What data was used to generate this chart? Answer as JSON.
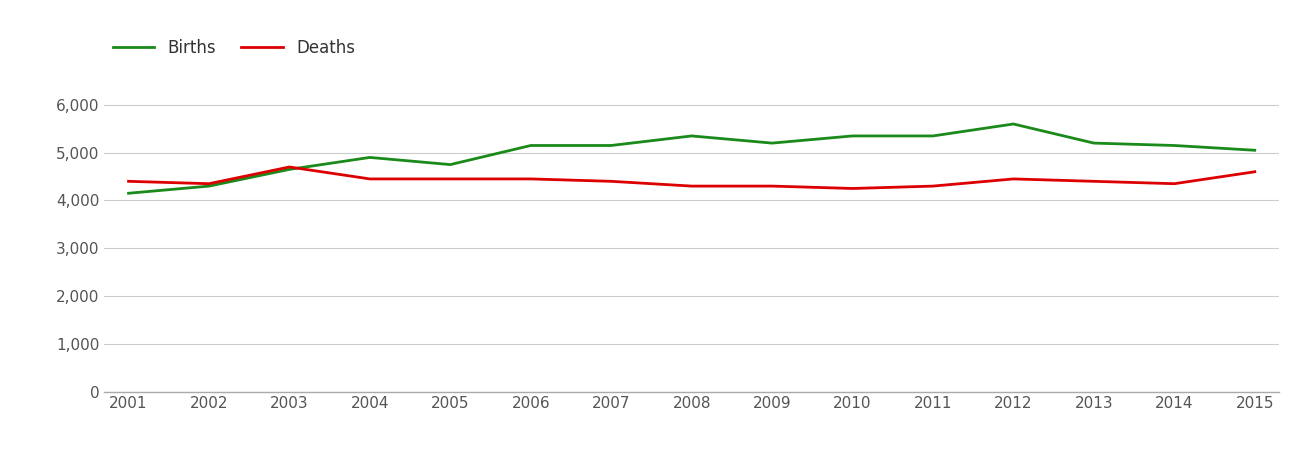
{
  "years": [
    2001,
    2002,
    2003,
    2004,
    2005,
    2006,
    2007,
    2008,
    2009,
    2010,
    2011,
    2012,
    2013,
    2014,
    2015
  ],
  "births": [
    4150,
    4300,
    4650,
    4900,
    4750,
    5150,
    5150,
    5350,
    5200,
    5350,
    5350,
    5600,
    5200,
    5150,
    5050
  ],
  "deaths": [
    4400,
    4350,
    4700,
    4450,
    4450,
    4450,
    4400,
    4300,
    4300,
    4250,
    4300,
    4450,
    4400,
    4350,
    4600
  ],
  "births_color": "#1a8a1a",
  "deaths_color": "#dd0000",
  "line_width": 2.0,
  "ylim": [
    0,
    6500
  ],
  "yticks": [
    0,
    1000,
    2000,
    3000,
    4000,
    5000,
    6000
  ],
  "background_color": "#ffffff",
  "grid_color": "#cccccc",
  "legend_labels": [
    "Births",
    "Deaths"
  ],
  "legend_fontsize": 12,
  "tick_fontsize": 11,
  "tick_color": "#555555"
}
